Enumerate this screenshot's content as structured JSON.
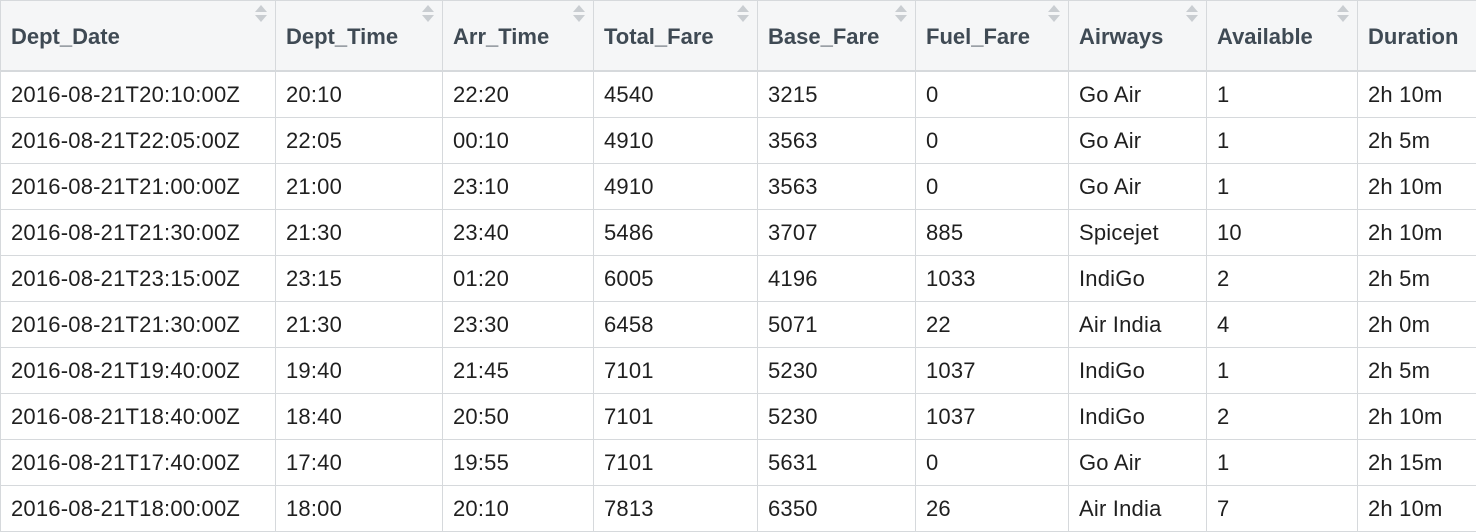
{
  "table": {
    "columns": [
      "Dept_Date",
      "Dept_Time",
      "Arr_Time",
      "Total_Fare",
      "Base_Fare",
      "Fuel_Fare",
      "Airways",
      "Available",
      "Duration"
    ],
    "sort_icon": "sort-arrows-icon",
    "rows": [
      [
        "2016-08-21T20:10:00Z",
        "20:10",
        "22:20",
        "4540",
        "3215",
        "0",
        "Go Air",
        "1",
        "2h 10m"
      ],
      [
        "2016-08-21T22:05:00Z",
        "22:05",
        "00:10",
        "4910",
        "3563",
        "0",
        "Go Air",
        "1",
        "2h 5m"
      ],
      [
        "2016-08-21T21:00:00Z",
        "21:00",
        "23:10",
        "4910",
        "3563",
        "0",
        "Go Air",
        "1",
        "2h 10m"
      ],
      [
        "2016-08-21T21:30:00Z",
        "21:30",
        "23:40",
        "5486",
        "3707",
        "885",
        "Spicejet",
        "10",
        "2h 10m"
      ],
      [
        "2016-08-21T23:15:00Z",
        "23:15",
        "01:20",
        "6005",
        "4196",
        "1033",
        "IndiGo",
        "2",
        "2h 5m"
      ],
      [
        "2016-08-21T21:30:00Z",
        "21:30",
        "23:30",
        "6458",
        "5071",
        "22",
        "Air India",
        "4",
        "2h 0m"
      ],
      [
        "2016-08-21T19:40:00Z",
        "19:40",
        "21:45",
        "7101",
        "5230",
        "1037",
        "IndiGo",
        "1",
        "2h 5m"
      ],
      [
        "2016-08-21T18:40:00Z",
        "18:40",
        "20:50",
        "7101",
        "5230",
        "1037",
        "IndiGo",
        "2",
        "2h 10m"
      ],
      [
        "2016-08-21T17:40:00Z",
        "17:40",
        "19:55",
        "7101",
        "5631",
        "0",
        "Go Air",
        "1",
        "2h 15m"
      ],
      [
        "2016-08-21T18:00:00Z",
        "18:00",
        "20:10",
        "7813",
        "6350",
        "26",
        "Air India",
        "7",
        "2h 10m"
      ]
    ]
  }
}
